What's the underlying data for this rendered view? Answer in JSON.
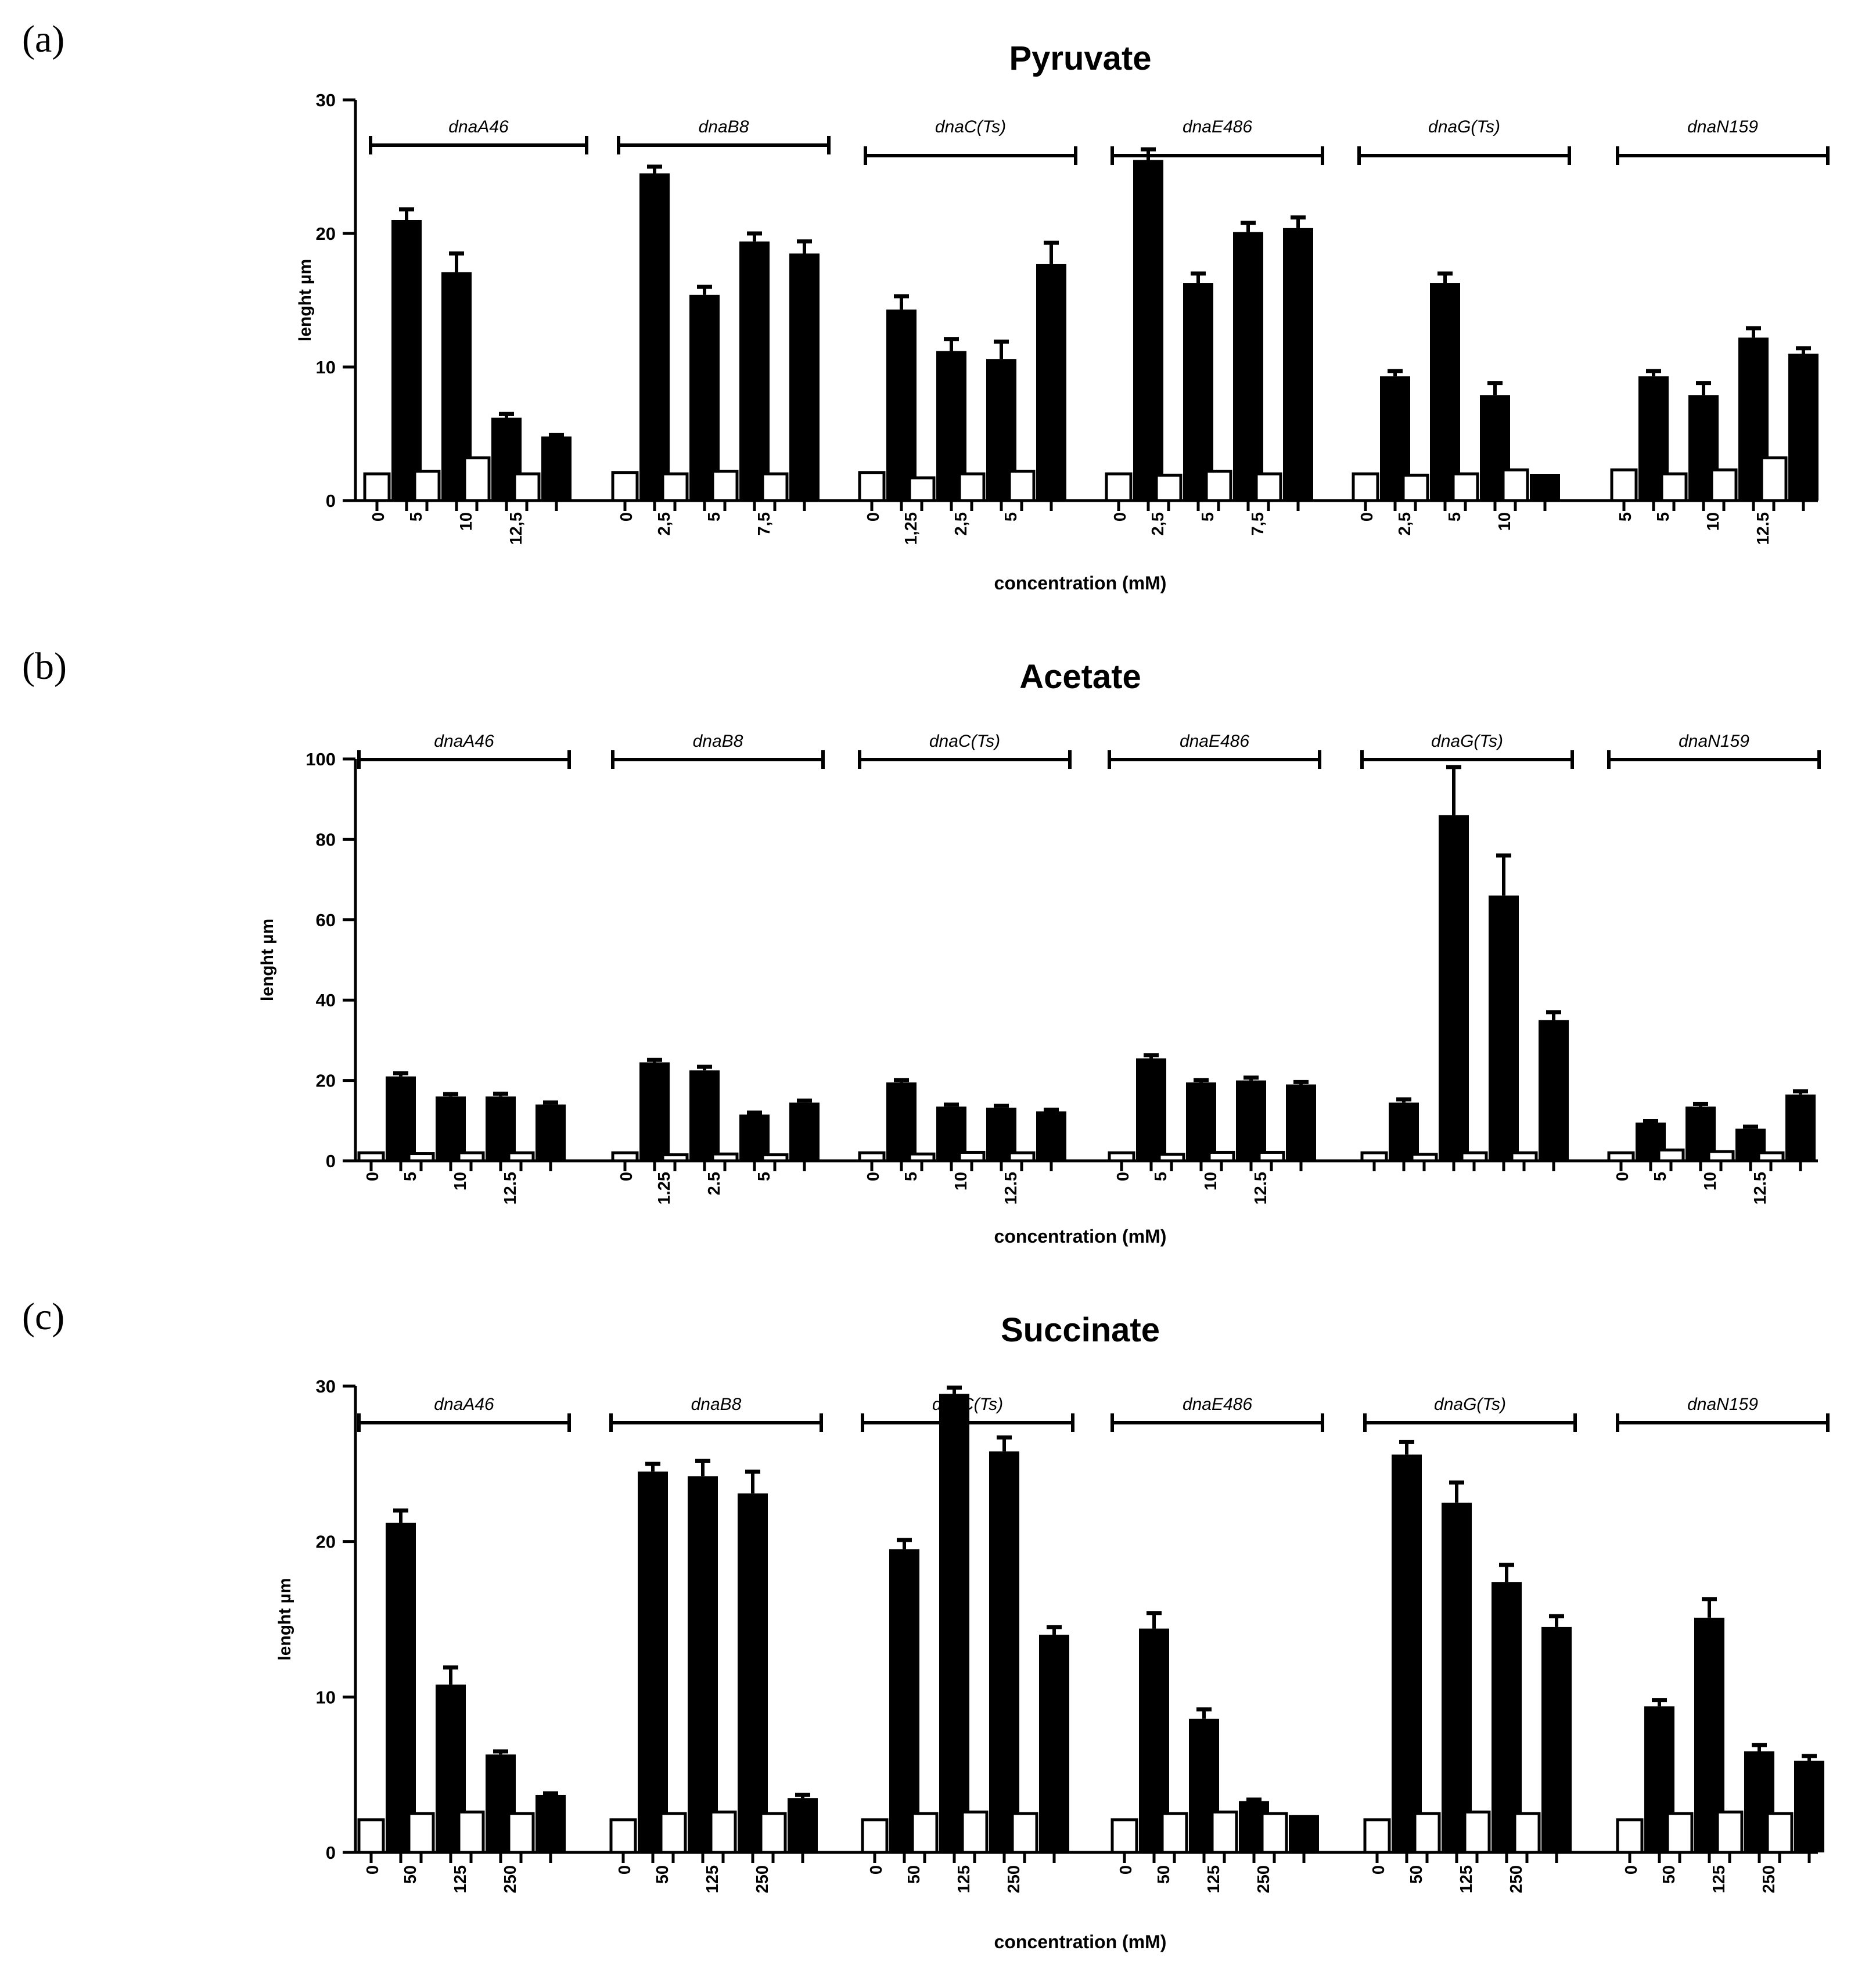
{
  "chart_data": [
    {
      "type": "bar",
      "panel": "(a)",
      "title": "Pyruvate",
      "xlabel": "concentration (mM)",
      "ylabel": "lenght µm",
      "ylim": [
        0,
        30
      ],
      "yticks": [
        "0",
        "10",
        "20",
        "30"
      ],
      "groups": [
        {
          "name": "dnaA46",
          "tick_labels": [
            "0",
            "5",
            "10",
            "12,5"
          ],
          "open_bars": [
            2.0,
            2.2,
            3.2,
            2.0
          ],
          "filled_bars": [
            21.0,
            17.1,
            6.2,
            4.8
          ],
          "filled_errors": [
            0.8,
            1.4,
            0.3,
            0.1
          ]
        },
        {
          "name": "dnaB8",
          "tick_labels": [
            "0",
            "2,5",
            "5",
            "7,5"
          ],
          "open_bars": [
            2.1,
            2.0,
            2.2,
            2.0
          ],
          "filled_bars": [
            24.5,
            15.4,
            19.4,
            18.5
          ],
          "filled_errors": [
            0.5,
            0.6,
            0.6,
            0.9
          ]
        },
        {
          "name": "dnaC(Ts)",
          "tick_labels": [
            "0",
            "1,25",
            "2,5",
            "5"
          ],
          "open_bars": [
            2.1,
            1.7,
            2.0,
            2.2
          ],
          "filled_bars": [
            14.3,
            11.2,
            10.6,
            17.7
          ],
          "filled_errors": [
            1.0,
            0.9,
            1.3,
            1.6
          ]
        },
        {
          "name": "dnaE486",
          "tick_labels": [
            "0",
            "2,5",
            "5",
            "7,5"
          ],
          "open_bars": [
            2.0,
            1.9,
            2.2,
            2.0
          ],
          "filled_bars": [
            25.5,
            16.3,
            20.1,
            20.4
          ],
          "filled_errors": [
            0.8,
            0.7,
            0.7,
            0.8
          ]
        },
        {
          "name": "dnaG(Ts)",
          "tick_labels": [
            "0",
            "2,5",
            "5",
            "10"
          ],
          "open_bars": [
            2.0,
            1.9,
            2.0,
            2.3
          ],
          "filled_bars": [
            9.3,
            16.3,
            7.9,
            2.0
          ],
          "filled_errors": [
            0.4,
            0.7,
            0.9,
            0.0
          ]
        },
        {
          "name": "dnaN159",
          "tick_labels": [
            "5",
            "5",
            "10",
            "12.5"
          ],
          "open_bars": [
            2.3,
            2.0,
            2.3,
            3.2
          ],
          "filled_bars": [
            9.3,
            7.9,
            12.2,
            11.0
          ],
          "filled_errors": [
            0.4,
            0.9,
            0.7,
            0.4
          ]
        }
      ]
    },
    {
      "type": "bar",
      "panel": "(b)",
      "title": "Acetate",
      "xlabel": "concentration (mM)",
      "ylabel": "lenght µm",
      "ylim": [
        0,
        100
      ],
      "yticks": [
        "0",
        "20",
        "40",
        "60",
        "80",
        "100"
      ],
      "groups": [
        {
          "name": "dnaA46",
          "tick_labels": [
            "0",
            "5",
            "10",
            "12.5"
          ],
          "open_bars": [
            2.0,
            1.8,
            2.0,
            2.0
          ],
          "filled_bars": [
            21.0,
            16.0,
            16.0,
            14.0
          ],
          "filled_errors": [
            0.8,
            0.6,
            0.7,
            0.5
          ]
        },
        {
          "name": "dnaB8",
          "tick_labels": [
            "0",
            "1.25",
            "2.5",
            "5"
          ],
          "open_bars": [
            2.0,
            1.5,
            1.7,
            1.5
          ],
          "filled_bars": [
            24.5,
            22.5,
            11.5,
            14.5
          ],
          "filled_errors": [
            0.6,
            0.9,
            0.5,
            0.5
          ]
        },
        {
          "name": "dnaC(Ts)",
          "tick_labels": [
            "0",
            "5",
            "10",
            "12.5"
          ],
          "open_bars": [
            2.0,
            1.7,
            2.1,
            2.0
          ],
          "filled_bars": [
            19.5,
            13.5,
            13.2,
            12.3
          ],
          "filled_errors": [
            0.6,
            0.5,
            0.5,
            0.4
          ]
        },
        {
          "name": "dnaE486",
          "tick_labels": [
            "0",
            "5",
            "10",
            "12.5"
          ],
          "open_bars": [
            2.0,
            1.6,
            2.1,
            2.1
          ],
          "filled_bars": [
            25.5,
            19.5,
            20.0,
            19.0
          ],
          "filled_errors": [
            0.8,
            0.6,
            0.7,
            0.6
          ]
        },
        {
          "name": "dnaG(Ts)",
          "tick_labels": [
            "",
            "",
            "",
            ""
          ],
          "open_bars": [
            2.0,
            1.6,
            2.0,
            2.0
          ],
          "filled_bars": [
            14.5,
            86.0,
            66.0,
            35.0
          ],
          "filled_errors": [
            0.8,
            12.0,
            10.0,
            2.0
          ]
        },
        {
          "name": "dnaN159",
          "tick_labels": [
            "0",
            "5",
            "10",
            "12.5"
          ],
          "open_bars": [
            2.0,
            2.7,
            2.3,
            2.0
          ],
          "filled_bars": [
            9.5,
            13.5,
            8.0,
            16.5
          ],
          "filled_errors": [
            0.4,
            0.6,
            0.5,
            0.8
          ]
        }
      ]
    },
    {
      "type": "bar",
      "panel": "(c)",
      "title": "Succinate",
      "xlabel": "concentration (mM)",
      "ylabel": "lenght µm",
      "ylim": [
        0,
        30
      ],
      "yticks": [
        "0",
        "10",
        "20",
        "30"
      ],
      "groups": [
        {
          "name": "dnaA46",
          "tick_labels": [
            "0",
            "50",
            "125",
            "250"
          ],
          "open_bars": [
            2.1,
            2.5,
            2.6,
            2.5
          ],
          "filled_bars": [
            21.2,
            10.8,
            6.3,
            3.7
          ],
          "filled_errors": [
            0.8,
            1.1,
            0.2,
            0.1
          ]
        },
        {
          "name": "dnaB8",
          "tick_labels": [
            "0",
            "50",
            "125",
            "250"
          ],
          "open_bars": [
            2.1,
            2.5,
            2.6,
            2.5
          ],
          "filled_bars": [
            24.5,
            24.2,
            23.1,
            3.5
          ],
          "filled_errors": [
            0.5,
            1.0,
            1.4,
            0.2
          ]
        },
        {
          "name": "dnaC(Ts)",
          "tick_labels": [
            "0",
            "50",
            "125",
            "250"
          ],
          "open_bars": [
            2.1,
            2.5,
            2.6,
            2.5
          ],
          "filled_bars": [
            19.5,
            29.5,
            25.8,
            14.0
          ],
          "filled_errors": [
            0.6,
            0.4,
            0.9,
            0.5
          ]
        },
        {
          "name": "dnaE486",
          "tick_labels": [
            "0",
            "50",
            "125",
            "250"
          ],
          "open_bars": [
            2.1,
            2.5,
            2.6,
            2.5
          ],
          "filled_bars": [
            14.4,
            8.6,
            3.3,
            2.4
          ],
          "filled_errors": [
            1.0,
            0.6,
            0.1,
            0.0
          ]
        },
        {
          "name": "dnaG(Ts)",
          "tick_labels": [
            "0",
            "50",
            "125",
            "250"
          ],
          "open_bars": [
            2.1,
            2.5,
            2.6,
            2.5
          ],
          "filled_bars": [
            25.6,
            22.5,
            17.4,
            14.5
          ],
          "filled_errors": [
            0.8,
            1.3,
            1.1,
            0.7
          ]
        },
        {
          "name": "dnaN159",
          "tick_labels": [
            "0",
            "50",
            "125",
            "250"
          ],
          "open_bars": [
            2.1,
            2.5,
            2.6,
            2.5
          ],
          "filled_bars": [
            9.4,
            15.1,
            6.5,
            5.9
          ],
          "filled_errors": [
            0.4,
            1.2,
            0.4,
            0.3
          ]
        }
      ]
    }
  ],
  "colors": {
    "filled_bar": "#000000",
    "open_bar": "#ffffff",
    "axis": "#000000"
  }
}
